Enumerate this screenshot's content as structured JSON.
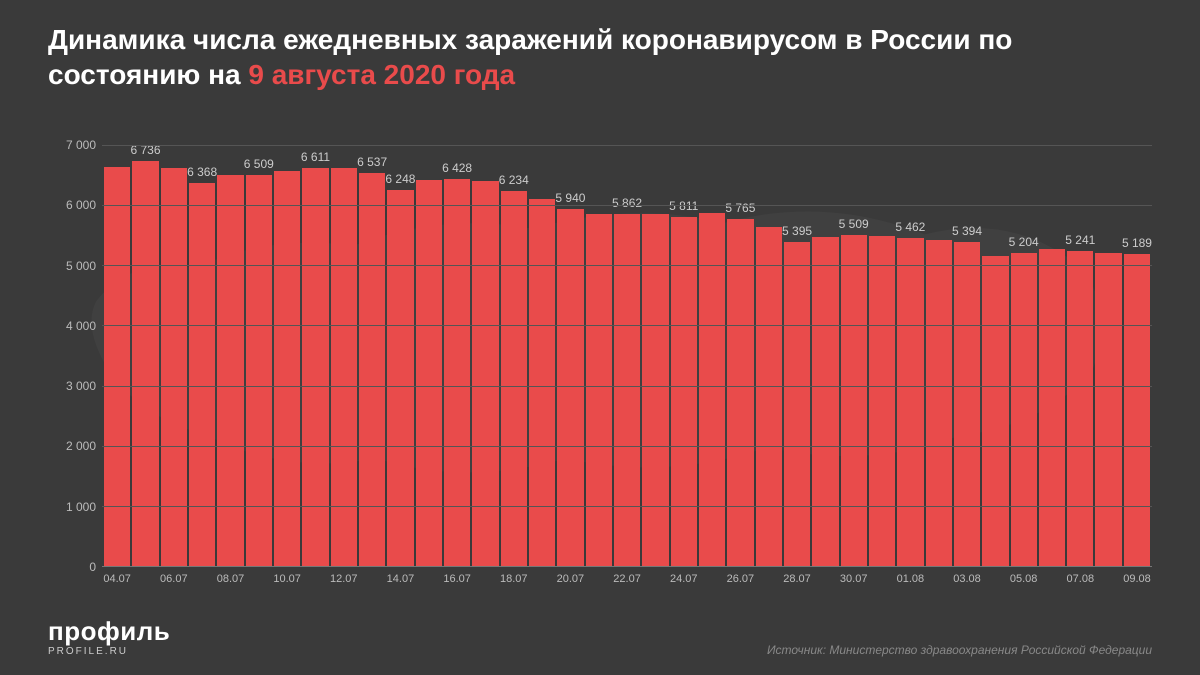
{
  "title": {
    "prefix": "Динамика числа ежедневных заражений коронавирусом в России по состоянию на ",
    "accent": "9 августа 2020 года",
    "fontsize": 28,
    "color": "#ffffff",
    "accent_color": "#e94b4b"
  },
  "chart": {
    "type": "bar",
    "background_color": "#3a3a3a",
    "bar_color": "#e94b4b",
    "grid_color": "#555555",
    "axis_text_color": "#bbbbbb",
    "bar_label_color": "#cccccc",
    "bar_label_fontsize": 12,
    "x_tick_fontsize": 11,
    "y_tick_fontsize": 12,
    "ylim": [
      0,
      7500
    ],
    "y_ticks": [
      0,
      1000,
      2000,
      3000,
      4000,
      5000,
      6000,
      7000
    ],
    "y_tick_labels": [
      "0",
      "1 000",
      "2 000",
      "3 000",
      "4 000",
      "5 000",
      "6 000",
      "7 000"
    ],
    "categories": [
      "04.07",
      "05.07",
      "06.07",
      "07.07",
      "08.07",
      "09.07",
      "10.07",
      "11.07",
      "12.07",
      "13.07",
      "14.07",
      "15.07",
      "16.07",
      "17.07",
      "18.07",
      "19.07",
      "20.07",
      "21.07",
      "22.07",
      "23.07",
      "24.07",
      "25.07",
      "26.07",
      "27.07",
      "28.07",
      "29.07",
      "30.07",
      "31.07",
      "01.08",
      "02.08",
      "03.08",
      "04.08",
      "05.08",
      "06.08",
      "07.08",
      "08.08",
      "09.08"
    ],
    "values": [
      6632,
      6736,
      6611,
      6368,
      6509,
      6509,
      6562,
      6611,
      6615,
      6537,
      6248,
      6422,
      6428,
      6406,
      6234,
      6109,
      5940,
      5862,
      5862,
      5848,
      5811,
      5871,
      5765,
      5635,
      5395,
      5475,
      5509,
      5482,
      5462,
      5427,
      5394,
      5159,
      5204,
      5267,
      5241,
      5212,
      5189
    ],
    "bar_value_labels": [
      "",
      "6 736",
      "",
      "6 368",
      "",
      "6 509",
      "",
      "6 611",
      "",
      "6 537",
      "6 248",
      "",
      "6 428",
      "",
      "6 234",
      "",
      "5 940",
      "",
      "5 862",
      "",
      "5 811",
      "",
      "5 765",
      "",
      "5 395",
      "",
      "5 509",
      "",
      "5 462",
      "",
      "5 394",
      "",
      "5 204",
      "",
      "5 241",
      "",
      "5 189"
    ],
    "x_show_every": 2
  },
  "footer": {
    "logo_main": "профиль",
    "logo_sub": "PROFILE.RU",
    "source": "Источник: Министерство здравоохранения Российской Федерации",
    "logo_color": "#ffffff",
    "source_color": "#888888"
  }
}
